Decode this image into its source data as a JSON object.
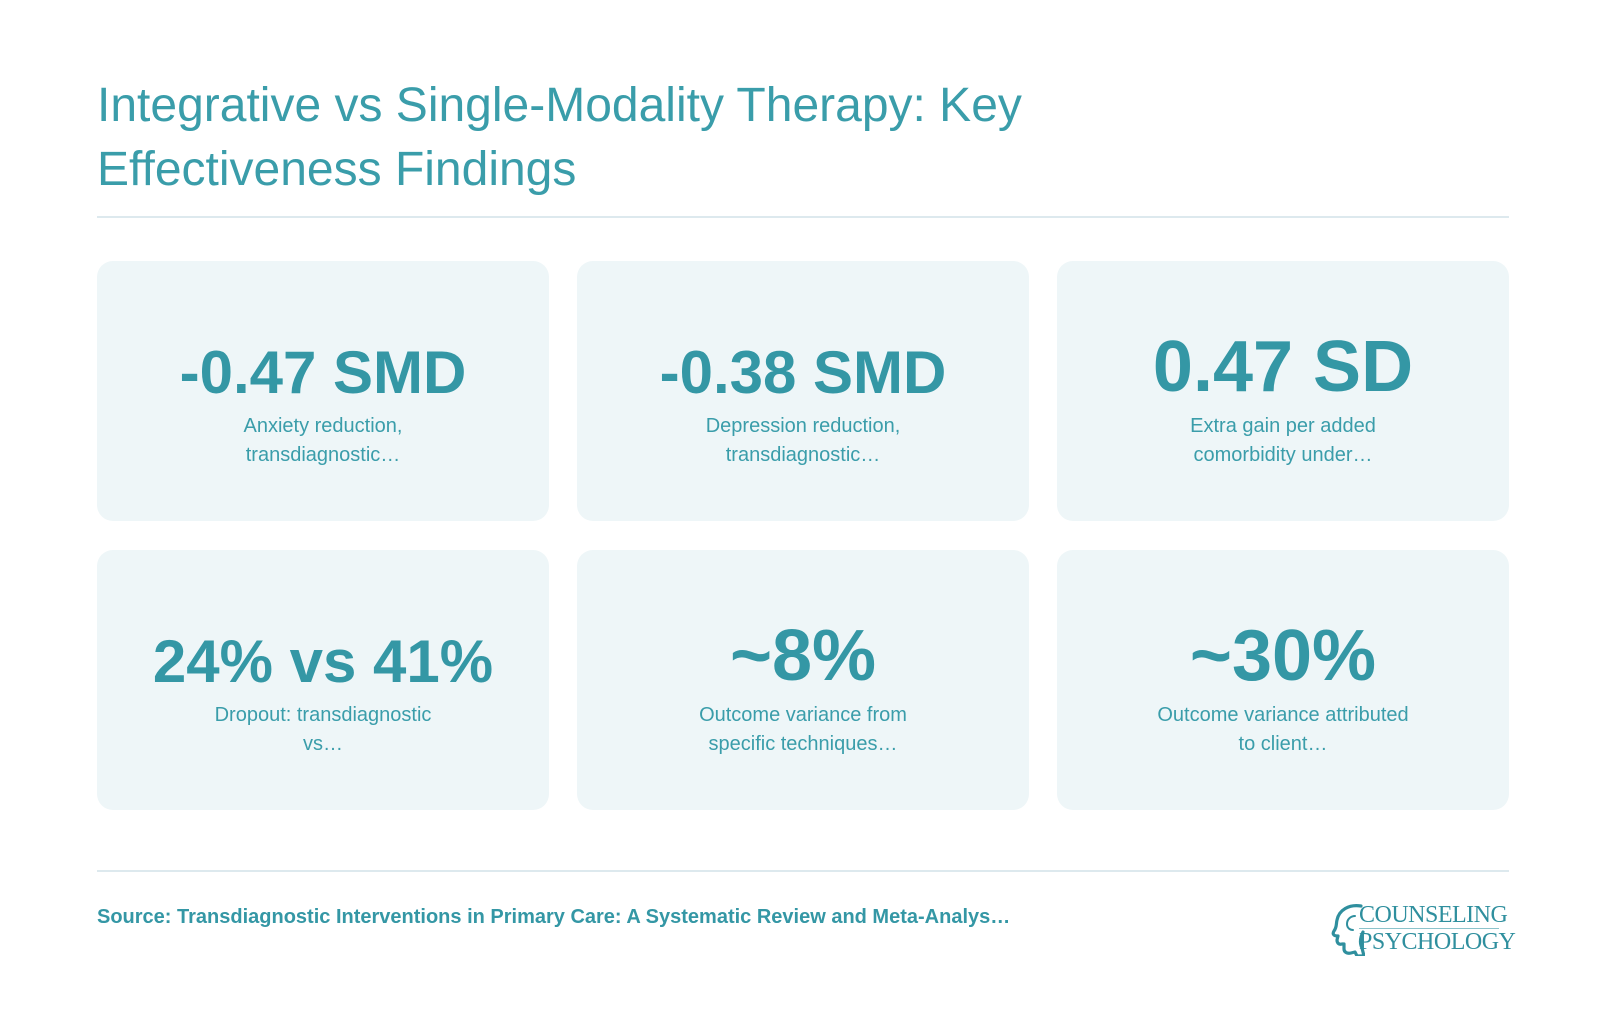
{
  "header": {
    "title": "Integrative vs Single-Modality Therapy: Key Effectiveness Findings"
  },
  "stats": [
    {
      "value": "-0.47 SMD",
      "label": "Anxiety reduction, transdiagnostic…"
    },
    {
      "value": "-0.38 SMD",
      "label": "Depression reduction, transdiagnostic…"
    },
    {
      "value": "0.47 SD",
      "label": "Extra gain per added comorbidity under…"
    },
    {
      "value": "24% vs 41%",
      "label": "Dropout: transdiagnostic vs…"
    },
    {
      "value": "~8%",
      "label": "Outcome variance from specific techniques…"
    },
    {
      "value": "~30%",
      "label": "Outcome variance attributed to client…"
    }
  ],
  "footer": {
    "source": "Source: Transdiagnostic Interventions in Primary Care: A Systematic Review and Meta-Analys…",
    "logo": {
      "line1": "COUNSELING",
      "line2": "PSYCHOLOGY",
      "icon": "head-profile-icon"
    }
  },
  "colors": {
    "accent": "#3497a5",
    "card_background": "#eef6f8",
    "rule": "#dde9ee"
  }
}
